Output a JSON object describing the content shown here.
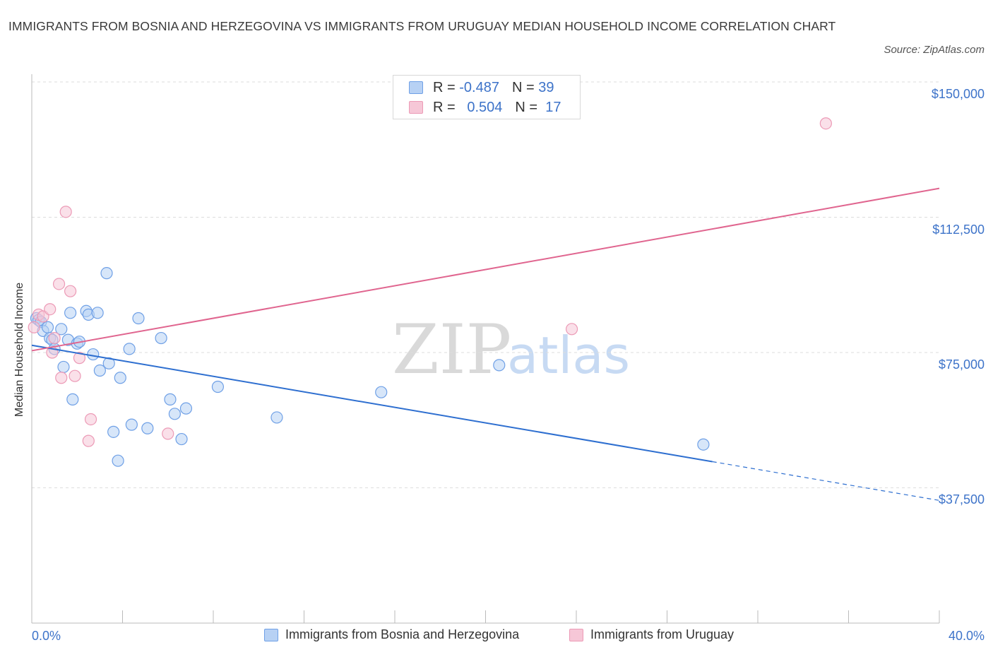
{
  "chart_data": {
    "type": "scatter",
    "title": "IMMIGRANTS FROM BOSNIA AND HERZEGOVINA VS IMMIGRANTS FROM URUGUAY MEDIAN HOUSEHOLD INCOME CORRELATION CHART",
    "source": "Source: ZipAtlas.com",
    "xlabel": "",
    "ylabel": "Median Household Income",
    "xlim": [
      0,
      40
    ],
    "ylim": [
      0,
      155000
    ],
    "x_tick_labels": {
      "left": "0.0%",
      "right": "40.0%"
    },
    "y_ticks": [
      {
        "value": 150000,
        "label": "$150,000"
      },
      {
        "value": 112500,
        "label": "$112,500"
      },
      {
        "value": 75000,
        "label": "$75,000"
      },
      {
        "value": 37500,
        "label": "$37,500"
      }
    ],
    "watermark": {
      "zip": "ZIP",
      "atlas": "atlas"
    },
    "stats": [
      {
        "r_label": "R =",
        "r_value": "-0.487",
        "n_label": "N =",
        "n_value": "39"
      },
      {
        "r_label": "R =",
        "r_value": "0.504",
        "n_label": "N =",
        "n_value": "17"
      }
    ],
    "series": [
      {
        "name": "Immigrants from Bosnia and Herzegovina",
        "color": "#6fa0e6",
        "fill": "#b7d1f4",
        "line_color": "#2e6fd0",
        "trend": {
          "x0": 0,
          "y0": 77000,
          "x1": 40,
          "y1": 34000,
          "solid_until_x": 30
        },
        "points": [
          [
            0.2,
            84500
          ],
          [
            0.3,
            84000
          ],
          [
            0.4,
            83500
          ],
          [
            0.5,
            81000
          ],
          [
            0.7,
            82000
          ],
          [
            0.8,
            79000
          ],
          [
            0.9,
            78500
          ],
          [
            1.0,
            76000
          ],
          [
            1.3,
            81500
          ],
          [
            1.4,
            71000
          ],
          [
            1.6,
            78500
          ],
          [
            1.7,
            86000
          ],
          [
            1.8,
            62000
          ],
          [
            2.0,
            77500
          ],
          [
            2.1,
            78000
          ],
          [
            2.4,
            86500
          ],
          [
            2.5,
            85500
          ],
          [
            2.7,
            74500
          ],
          [
            2.9,
            86000
          ],
          [
            3.0,
            70000
          ],
          [
            3.3,
            97000
          ],
          [
            3.4,
            72000
          ],
          [
            3.6,
            53000
          ],
          [
            3.8,
            45000
          ],
          [
            3.9,
            68000
          ],
          [
            4.3,
            76000
          ],
          [
            4.4,
            55000
          ],
          [
            4.7,
            84500
          ],
          [
            5.1,
            54000
          ],
          [
            5.7,
            79000
          ],
          [
            6.1,
            62000
          ],
          [
            6.3,
            58000
          ],
          [
            6.6,
            51000
          ],
          [
            6.8,
            59500
          ],
          [
            8.2,
            65500
          ],
          [
            10.8,
            57000
          ],
          [
            15.4,
            64000
          ],
          [
            20.6,
            71500
          ],
          [
            29.6,
            49500
          ]
        ]
      },
      {
        "name": "Immigrants from Uruguay",
        "color": "#ec9ab6",
        "fill": "#f6c7d7",
        "line_color": "#e0658f",
        "trend": {
          "x0": 0,
          "y0": 75500,
          "x1": 40,
          "y1": 120500
        },
        "points": [
          [
            0.1,
            82000
          ],
          [
            0.3,
            85500
          ],
          [
            0.5,
            85000
          ],
          [
            0.8,
            87000
          ],
          [
            0.9,
            75000
          ],
          [
            1.0,
            79000
          ],
          [
            1.2,
            94000
          ],
          [
            1.3,
            68000
          ],
          [
            1.5,
            114000
          ],
          [
            1.7,
            92000
          ],
          [
            1.9,
            68500
          ],
          [
            2.1,
            73500
          ],
          [
            2.5,
            50500
          ],
          [
            2.6,
            56500
          ],
          [
            6.0,
            52500
          ],
          [
            23.8,
            81500
          ],
          [
            35.0,
            138500
          ]
        ]
      }
    ]
  }
}
